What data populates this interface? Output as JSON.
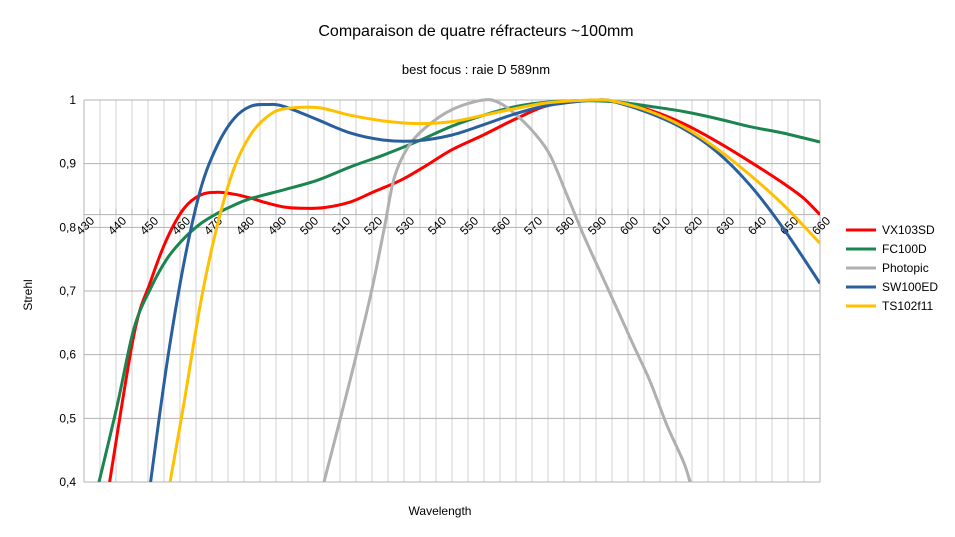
{
  "chart_data": {
    "type": "line",
    "title": "Comparaison de quatre réfracteurs ~100mm",
    "subtitle": "best focus : raie D 589nm",
    "xlabel": "Wavelength",
    "ylabel": "Strehl",
    "xlim": [
      430,
      660
    ],
    "ylim": [
      0.4,
      1
    ],
    "x_axis_crosses_at": 0.82,
    "x_ticks": [
      "430",
      "440",
      "450",
      "460",
      "470",
      "480",
      "490",
      "500",
      "510",
      "520",
      "530",
      "540",
      "550",
      "560",
      "570",
      "580",
      "590",
      "600",
      "610",
      "620",
      "630",
      "640",
      "650",
      "660"
    ],
    "y_ticks": [
      {
        "value": 1,
        "label": "1"
      },
      {
        "value": 0.9,
        "label": "0,9"
      },
      {
        "value": 0.8,
        "label": "0,8"
      },
      {
        "value": 0.7,
        "label": "0,7"
      },
      {
        "value": 0.6,
        "label": "0,6"
      },
      {
        "value": 0.5,
        "label": "0,5"
      },
      {
        "value": 0.4,
        "label": "0,4"
      }
    ],
    "grid": true,
    "legend_position": "right",
    "series": [
      {
        "name": "VX103SD",
        "color": "#ff0000",
        "points": [
          [
            438,
            0.4
          ],
          [
            445.6,
            0.631
          ],
          [
            450.8,
            0.715
          ],
          [
            456,
            0.783
          ],
          [
            461.3,
            0.83
          ],
          [
            466.5,
            0.851
          ],
          [
            471.7,
            0.855
          ],
          [
            476.9,
            0.852
          ],
          [
            482,
            0.846
          ],
          [
            487.3,
            0.838
          ],
          [
            492.5,
            0.832
          ],
          [
            497.7,
            0.83
          ],
          [
            505,
            0.831
          ],
          [
            513.3,
            0.84
          ],
          [
            520.6,
            0.856
          ],
          [
            529,
            0.874
          ],
          [
            536.3,
            0.895
          ],
          [
            545,
            0.922
          ],
          [
            554.8,
            0.945
          ],
          [
            565.2,
            0.971
          ],
          [
            575.6,
            0.992
          ],
          [
            590.2,
            1.0
          ],
          [
            596.5,
            0.997
          ],
          [
            606.9,
            0.984
          ],
          [
            617.3,
            0.963
          ],
          [
            627.7,
            0.935
          ],
          [
            638.2,
            0.903
          ],
          [
            648.6,
            0.869
          ],
          [
            654.8,
            0.846
          ],
          [
            660,
            0.82
          ]
        ]
      },
      {
        "name": "FC100D",
        "color": "#1b8550",
        "points": [
          [
            434.7,
            0.4
          ],
          [
            440.4,
            0.521
          ],
          [
            445.6,
            0.641
          ],
          [
            450.8,
            0.704
          ],
          [
            456,
            0.751
          ],
          [
            461.3,
            0.783
          ],
          [
            466.5,
            0.806
          ],
          [
            471.7,
            0.822
          ],
          [
            476.9,
            0.835
          ],
          [
            482,
            0.845
          ],
          [
            492.5,
            0.859
          ],
          [
            503,
            0.874
          ],
          [
            513.3,
            0.895
          ],
          [
            523.8,
            0.914
          ],
          [
            534.2,
            0.935
          ],
          [
            545,
            0.959
          ],
          [
            554.8,
            0.976
          ],
          [
            565.2,
            0.99
          ],
          [
            575.6,
            0.997
          ],
          [
            586,
            0.999
          ],
          [
            596.5,
            0.997
          ],
          [
            606.9,
            0.99
          ],
          [
            617.3,
            0.982
          ],
          [
            627.7,
            0.971
          ],
          [
            638.2,
            0.958
          ],
          [
            648.6,
            0.948
          ],
          [
            660,
            0.934
          ]
        ]
      },
      {
        "name": "Photopic",
        "color": "#b0b0b0",
        "points": [
          [
            505,
            0.4
          ],
          [
            513.3,
            0.563
          ],
          [
            519.6,
            0.694
          ],
          [
            523.8,
            0.798
          ],
          [
            526.9,
            0.877
          ],
          [
            531,
            0.924
          ],
          [
            536.3,
            0.955
          ],
          [
            545,
            0.985
          ],
          [
            554.8,
            1.0
          ],
          [
            560,
            0.995
          ],
          [
            565.2,
            0.976
          ],
          [
            570.4,
            0.95
          ],
          [
            575.6,
            0.914
          ],
          [
            580.9,
            0.851
          ],
          [
            586.1,
            0.788
          ],
          [
            591.3,
            0.73
          ],
          [
            596.5,
            0.673
          ],
          [
            601.7,
            0.615
          ],
          [
            606.9,
            0.558
          ],
          [
            612.1,
            0.49
          ],
          [
            617.3,
            0.432
          ],
          [
            619.4,
            0.4
          ]
        ]
      },
      {
        "name": "SW100ED",
        "color": "#2a5f9e",
        "points": [
          [
            450.8,
            0.4
          ],
          [
            456,
            0.589
          ],
          [
            461.3,
            0.746
          ],
          [
            466.5,
            0.861
          ],
          [
            471.7,
            0.929
          ],
          [
            476.9,
            0.971
          ],
          [
            482,
            0.99
          ],
          [
            487.3,
            0.993
          ],
          [
            492.5,
            0.99
          ],
          [
            503,
            0.969
          ],
          [
            513.3,
            0.948
          ],
          [
            523.8,
            0.937
          ],
          [
            534.2,
            0.936
          ],
          [
            545,
            0.945
          ],
          [
            554.8,
            0.961
          ],
          [
            565.2,
            0.979
          ],
          [
            575.6,
            0.992
          ],
          [
            590.2,
            1.0
          ],
          [
            596.5,
            0.996
          ],
          [
            606.9,
            0.979
          ],
          [
            617.3,
            0.955
          ],
          [
            627.7,
            0.919
          ],
          [
            638.2,
            0.866
          ],
          [
            648.6,
            0.798
          ],
          [
            660,
            0.712
          ]
        ]
      },
      {
        "name": "TS102f11",
        "color": "#ffc000",
        "points": [
          [
            456.9,
            0.4
          ],
          [
            461.3,
            0.526
          ],
          [
            466.5,
            0.683
          ],
          [
            471.7,
            0.804
          ],
          [
            476.9,
            0.893
          ],
          [
            482,
            0.945
          ],
          [
            487.3,
            0.974
          ],
          [
            492.5,
            0.986
          ],
          [
            503,
            0.988
          ],
          [
            513.3,
            0.976
          ],
          [
            523.8,
            0.967
          ],
          [
            534.2,
            0.963
          ],
          [
            545,
            0.966
          ],
          [
            554.8,
            0.976
          ],
          [
            565.2,
            0.987
          ],
          [
            575.6,
            0.996
          ],
          [
            590.2,
            1.0
          ],
          [
            596.5,
            0.997
          ],
          [
            606.9,
            0.982
          ],
          [
            617.3,
            0.958
          ],
          [
            627.7,
            0.924
          ],
          [
            638.2,
            0.882
          ],
          [
            648.6,
            0.835
          ],
          [
            660,
            0.775
          ]
        ]
      }
    ]
  }
}
